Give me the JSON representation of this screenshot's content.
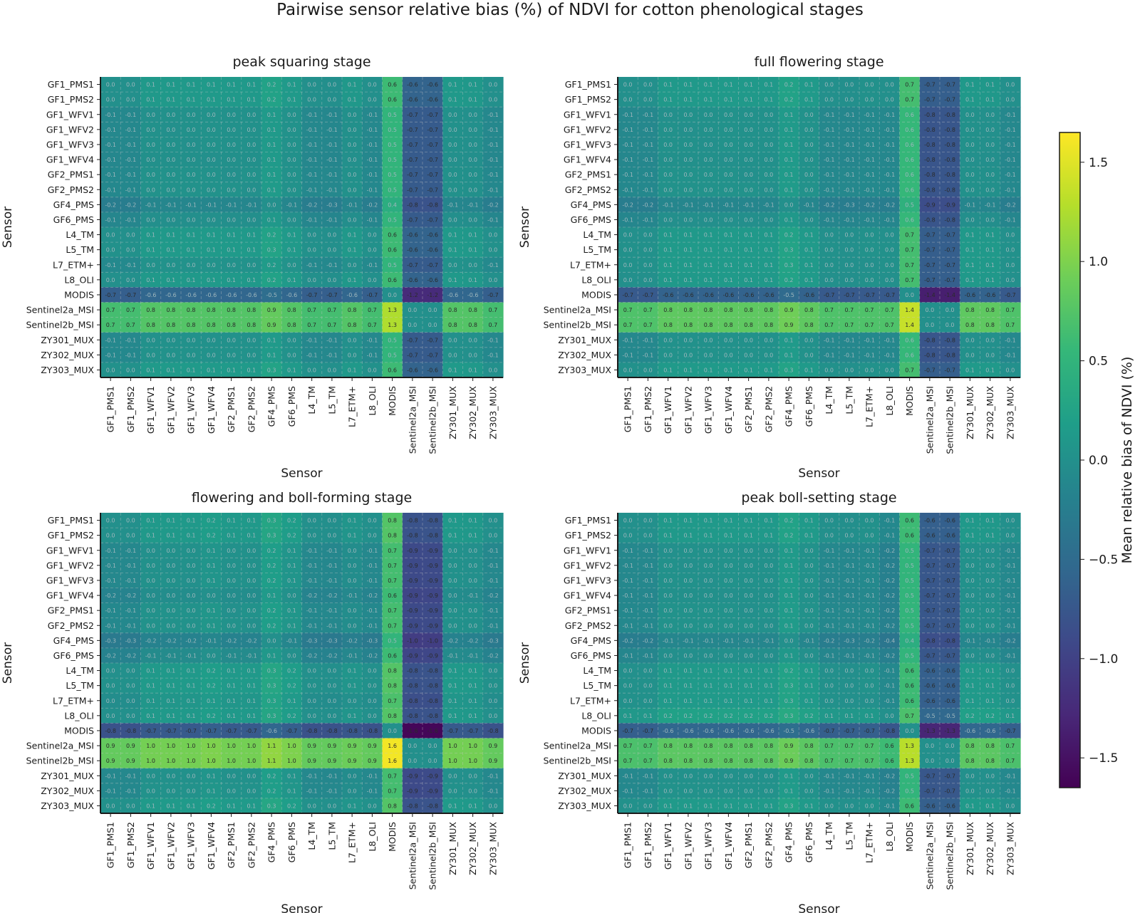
{
  "figure": {
    "title": "Pairwise sensor relative bias (%) of NDVI for cotton phenological stages",
    "colorbar": {
      "label": "Mean relative bias of NDVI (%)",
      "range": [
        -1.65,
        1.65
      ],
      "ticks": [
        1.5,
        1.0,
        0.5,
        0.0,
        -0.5,
        -1.0,
        -1.5
      ],
      "tick_labels": [
        "1.5",
        "1.0",
        "0.5",
        "0.0",
        "−0.5",
        "−1.0",
        "−1.5"
      ],
      "colormap": "viridis",
      "colors": [
        "#440154",
        "#482878",
        "#3e4989",
        "#31688e",
        "#26828e",
        "#1f9e89",
        "#35b779",
        "#6ece58",
        "#b5de2b",
        "#fde725"
      ]
    }
  },
  "chart_data": [
    {
      "type": "heatmap",
      "title": "peak squaring stage",
      "xlabel": "Sensor",
      "ylabel": "Sensor",
      "categories": [
        "GF1_PMS1",
        "GF1_PMS2",
        "GF1_WFV1",
        "GF1_WFV2",
        "GF1_WFV3",
        "GF1_WFV4",
        "GF2_PMS1",
        "GF2_PMS2",
        "GF4_PMS",
        "GF6_PMS",
        "L4_TM",
        "L5_TM",
        "L7_ETM+",
        "L8_OLI",
        "MODIS",
        "Sentinel2a_MSI",
        "Sentinel2b_MSI",
        "ZY301_MUX",
        "ZY302_MUX",
        "ZY303_MUX"
      ],
      "offsets": [
        0.0,
        0.0,
        0.1,
        0.1,
        0.1,
        0.1,
        0.1,
        0.1,
        0.2,
        0.1,
        0.0,
        0.0,
        0.1,
        0.0,
        0.6,
        -0.65,
        -0.65,
        0.1,
        0.1,
        0.0
      ],
      "row_offsets": [
        -0.02,
        -0.02,
        -0.03,
        -0.03,
        -0.03,
        -0.05,
        -0.02,
        -0.02,
        -0.12,
        -0.08,
        -0.02,
        0.0,
        0.0,
        -0.02,
        -0.12,
        0.0,
        0.0,
        -0.04,
        -0.02,
        0.0
      ],
      "col_offsets": [
        0.02,
        0.02,
        0.06,
        0.06,
        0.06,
        0.07,
        0.06,
        0.06,
        0.1,
        0.07,
        0.02,
        0.0,
        0.04,
        0.02,
        0.0,
        0.1,
        0.1,
        0.05,
        0.03,
        0.02
      ],
      "annotated": true
    },
    {
      "type": "heatmap",
      "title": "full flowering stage",
      "xlabel": "Sensor",
      "ylabel": "Sensor",
      "categories": [
        "GF1_PMS1",
        "GF1_PMS2",
        "GF1_WFV1",
        "GF1_WFV2",
        "GF1_WFV3",
        "GF1_WFV4",
        "GF2_PMS1",
        "GF2_PMS2",
        "GF4_PMS",
        "GF6_PMS",
        "L4_TM",
        "L5_TM",
        "L7_ETM+",
        "L8_OLI",
        "MODIS",
        "Sentinel2a_MSI",
        "Sentinel2b_MSI",
        "ZY301_MUX",
        "ZY302_MUX",
        "ZY303_MUX"
      ],
      "offsets": [
        0.0,
        0.0,
        0.1,
        0.1,
        0.1,
        0.1,
        0.1,
        0.1,
        0.2,
        0.1,
        0.0,
        0.0,
        0.0,
        0.0,
        0.65,
        -0.72,
        -0.72,
        0.1,
        0.1,
        0.0
      ],
      "row_offsets": [
        -0.02,
        -0.02,
        -0.03,
        -0.03,
        -0.03,
        -0.05,
        -0.02,
        -0.02,
        -0.12,
        -0.08,
        -0.02,
        0.0,
        0.0,
        -0.02,
        -0.12,
        0.0,
        0.0,
        -0.04,
        -0.02,
        0.0
      ],
      "col_offsets": [
        0.02,
        0.02,
        0.06,
        0.06,
        0.06,
        0.07,
        0.06,
        0.06,
        0.1,
        0.07,
        0.02,
        0.0,
        0.04,
        0.02,
        0.0,
        0.1,
        0.12,
        0.05,
        0.03,
        0.02
      ],
      "annotated": true
    },
    {
      "type": "heatmap",
      "title": "flowering and boll-forming stage",
      "xlabel": "Sensor",
      "ylabel": "Sensor",
      "categories": [
        "GF1_PMS1",
        "GF1_PMS2",
        "GF1_WFV1",
        "GF1_WFV2",
        "GF1_WFV3",
        "GF1_WFV4",
        "GF2_PMS1",
        "GF2_PMS2",
        "GF4_PMS",
        "GF6_PMS",
        "L4_TM",
        "L5_TM",
        "L7_ETM+",
        "L8_OLI",
        "MODIS",
        "Sentinel2a_MSI",
        "Sentinel2b_MSI",
        "ZY301_MUX",
        "ZY302_MUX",
        "ZY303_MUX"
      ],
      "offsets": [
        0.0,
        0.0,
        0.1,
        0.1,
        0.1,
        0.15,
        0.1,
        0.1,
        0.25,
        0.15,
        0.0,
        0.0,
        0.05,
        0.0,
        0.75,
        -0.85,
        -0.85,
        0.1,
        0.1,
        0.0
      ],
      "row_offsets": [
        -0.02,
        -0.02,
        -0.03,
        -0.03,
        -0.03,
        -0.05,
        -0.02,
        -0.02,
        -0.12,
        -0.08,
        -0.02,
        0.0,
        0.0,
        -0.02,
        -0.12,
        0.0,
        0.0,
        -0.04,
        -0.02,
        0.0
      ],
      "col_offsets": [
        0.02,
        0.02,
        0.06,
        0.06,
        0.06,
        0.07,
        0.06,
        0.06,
        0.1,
        0.07,
        0.02,
        0.0,
        0.04,
        0.02,
        0.0,
        0.1,
        0.12,
        0.05,
        0.03,
        0.02
      ],
      "annotated": true
    },
    {
      "type": "heatmap",
      "title": "peak boll-setting stage",
      "xlabel": "Sensor",
      "ylabel": "Sensor",
      "categories": [
        "GF1_PMS1",
        "GF1_PMS2",
        "GF1_WFV1",
        "GF1_WFV2",
        "GF1_WFV3",
        "GF1_WFV4",
        "GF2_PMS1",
        "GF2_PMS2",
        "GF4_PMS",
        "GF6_PMS",
        "L4_TM",
        "L5_TM",
        "L7_ETM+",
        "L8_OLI",
        "MODIS",
        "Sentinel2a_MSI",
        "Sentinel2b_MSI",
        "ZY301_MUX",
        "ZY302_MUX",
        "ZY303_MUX"
      ],
      "offsets": [
        0.0,
        0.0,
        0.1,
        0.1,
        0.1,
        0.1,
        0.1,
        0.1,
        0.2,
        0.1,
        0.0,
        0.0,
        0.0,
        -0.1,
        0.6,
        -0.7,
        -0.7,
        0.1,
        0.1,
        0.0
      ],
      "row_offsets": [
        -0.02,
        -0.02,
        -0.03,
        -0.03,
        -0.03,
        -0.05,
        -0.02,
        -0.02,
        -0.12,
        -0.08,
        -0.02,
        0.0,
        0.0,
        -0.02,
        -0.12,
        0.0,
        0.0,
        -0.04,
        -0.02,
        0.0
      ],
      "col_offsets": [
        0.02,
        0.02,
        0.06,
        0.06,
        0.06,
        0.07,
        0.06,
        0.06,
        0.1,
        0.07,
        0.02,
        0.0,
        0.04,
        0.02,
        0.0,
        0.1,
        0.12,
        0.05,
        0.03,
        0.02
      ],
      "annotated": true
    }
  ]
}
